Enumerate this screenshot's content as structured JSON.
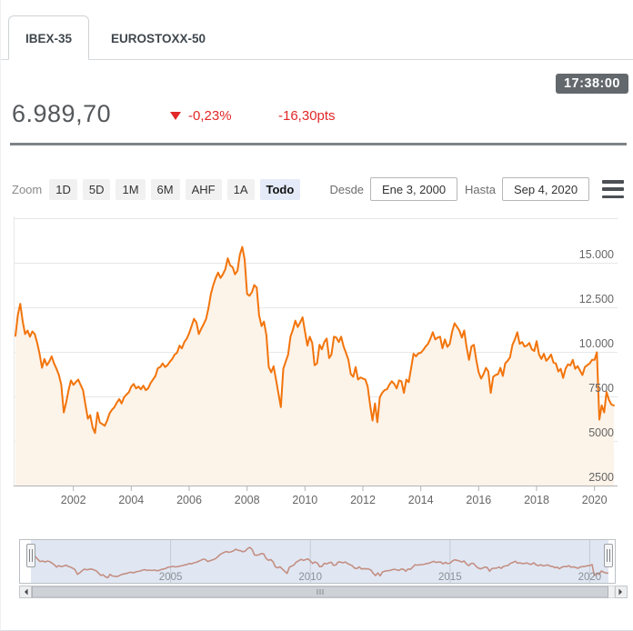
{
  "tabs": [
    {
      "label": "IBEX-35",
      "active": true
    },
    {
      "label": "EUROSTOXX-50",
      "active": false
    }
  ],
  "quote": {
    "time": "17:38:00",
    "price": "6.989,70",
    "change_pct": "-0,23%",
    "change_pts": "-16,30pts",
    "direction": "down"
  },
  "toolbar": {
    "zoom_label": "Zoom",
    "ranges": [
      "1D",
      "5D",
      "1M",
      "6M",
      "AHF",
      "1A",
      "Todo"
    ],
    "selected_range": "Todo",
    "from_label": "Desde",
    "from_value": "Ene 3, 2000",
    "to_label": "Hasta",
    "to_value": "Sep 4, 2020"
  },
  "chart_data": {
    "type": "area",
    "title": "IBEX-35 index, Ene 3 2000 - Sep 4 2020, monthly values",
    "xlabel": "",
    "ylabel": "",
    "grid": true,
    "legend": false,
    "x_start": 2000.0,
    "x_step_years": 0.08333,
    "xlim": [
      2000.0,
      2020.67
    ],
    "ylim": [
      2500,
      17500
    ],
    "x_ticks": [
      2002,
      2004,
      2006,
      2008,
      2010,
      2012,
      2014,
      2016,
      2018,
      2020
    ],
    "y_ticks": [
      {
        "value": 15000,
        "label": "15.000"
      },
      {
        "value": 12500,
        "label": "12.500"
      },
      {
        "value": 10000,
        "label": "10.000"
      },
      {
        "value": 7500,
        "label": "7500"
      },
      {
        "value": 5000,
        "label": "5000"
      },
      {
        "value": 2500,
        "label": "2500"
      }
    ],
    "values": [
      10900,
      12100,
      12700,
      11700,
      11000,
      11200,
      10850,
      11150,
      11000,
      10500,
      9900,
      9109,
      9600,
      9250,
      9450,
      9750,
      9350,
      9050,
      8700,
      8150,
      6600,
      7150,
      7850,
      8398,
      8150,
      8300,
      8450,
      8150,
      7850,
      7050,
      6250,
      6450,
      5750,
      5450,
      6600,
      6037,
      5950,
      5850,
      6150,
      6550,
      6750,
      6900,
      7150,
      7350,
      7100,
      7450,
      7600,
      7737,
      8050,
      8200,
      7950,
      8050,
      7900,
      8100,
      7850,
      7950,
      8250,
      8450,
      8650,
      9081,
      9150,
      9350,
      9150,
      9250,
      9450,
      9600,
      9850,
      9950,
      10350,
      10200,
      10550,
      10734,
      11050,
      11450,
      11850,
      11650,
      11000,
      11300,
      11550,
      11850,
      12450,
      13250,
      13750,
      14146,
      14450,
      14150,
      14350,
      14650,
      15250,
      14850,
      14750,
      14350,
      14550,
      15450,
      15890,
      15182,
      13250,
      13150,
      13350,
      13750,
      13600,
      12050,
      11450,
      11700,
      10950,
      9150,
      8850,
      9195,
      8450,
      7650,
      6900,
      9050,
      9450,
      9850,
      10850,
      11250,
      11750,
      11400,
      11650,
      11940,
      11150,
      10350,
      10850,
      10500,
      9250,
      9350,
      10400,
      10150,
      10550,
      10750,
      9650,
      9859,
      10850,
      10800,
      10550,
      10850,
      10300,
      9950,
      9550,
      8750,
      8600,
      9150,
      8450,
      8566,
      8500,
      8450,
      8050,
      7000,
      6150,
      7100,
      6050,
      7450,
      7700,
      7850,
      7900,
      8167,
      8350,
      8200,
      7950,
      8400,
      8350,
      7700,
      8450,
      8300,
      9100,
      9900,
      9750,
      9916,
      9950,
      10100,
      10300,
      10450,
      10750,
      11100,
      10700,
      10800,
      10850,
      10200,
      10700,
      10280,
      10450,
      11150,
      11600,
      11400,
      11200,
      10800,
      11200,
      10250,
      9550,
      10300,
      10400,
      9544,
      8850,
      8500,
      8750,
      9100,
      8900,
      7700,
      8600,
      8700,
      8750,
      9100,
      8650,
      9352,
      9500,
      9700,
      10400,
      10700,
      11100,
      10450,
      10550,
      10300,
      10350,
      10500,
      10150,
      10044,
      10600,
      9850,
      9600,
      9900,
      9500,
      9650,
      9850,
      9400,
      9350,
      8900,
      9050,
      8540,
      9050,
      9300,
      9240,
      9550,
      9050,
      9200,
      8950,
      8700,
      9150,
      9250,
      9350,
      9549,
      9550,
      9980,
      6200,
      7000,
      6600,
      7750,
      7300,
      7050,
      6990
    ],
    "navigator": {
      "x_ticks": [
        2005,
        2010,
        2015,
        2020
      ],
      "ylim": [
        4000,
        16500
      ]
    },
    "colors": {
      "line": "#f2740b",
      "fill": "#fcf3e9",
      "nav_line": "#dc9273",
      "nav_mask": "#6685c2",
      "grid": "#e7e7e7",
      "axis": "#b3b3b3",
      "tick_text": "#666666",
      "nav_text": "#8a8f94",
      "red": "#e12727",
      "badge_bg": "#63686d",
      "range_selected_bg": "#e4eaf7"
    }
  }
}
